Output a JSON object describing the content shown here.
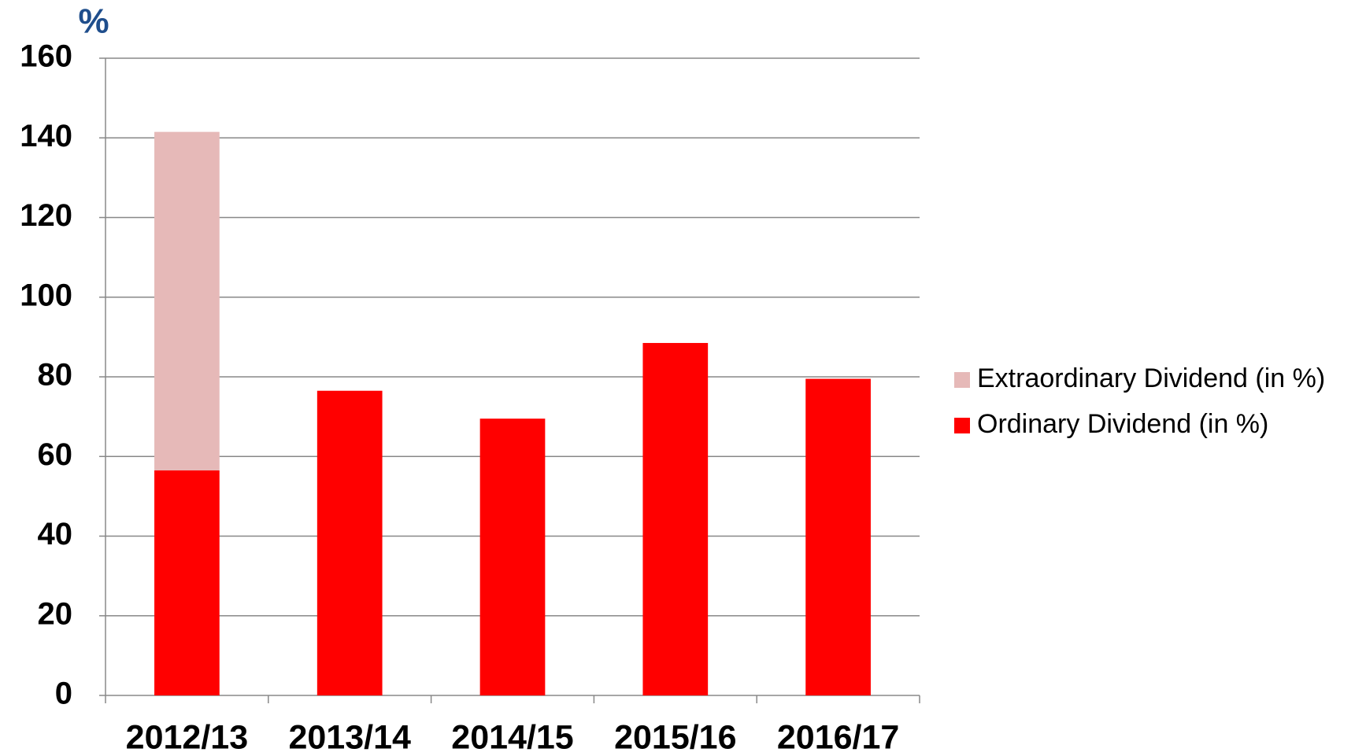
{
  "chart_data": {
    "type": "stacked_bar",
    "y_label": "%",
    "categories": [
      "2012/13",
      "2013/14",
      "2014/15",
      "2015/16",
      "2016/17"
    ],
    "series": [
      {
        "name": "Ordinary Dividend (in %)",
        "color": "#ff0000",
        "values": [
          56.5,
          76.5,
          69.5,
          88.5,
          79.5
        ]
      },
      {
        "name": "Extraordinary Dividend (in %)",
        "color": "#e6b9b8",
        "values": [
          85,
          0,
          0,
          0,
          0
        ]
      }
    ],
    "ylim": [
      0,
      160
    ],
    "yticks": [
      0,
      20,
      40,
      60,
      80,
      100,
      120,
      140,
      160
    ],
    "grid": true
  }
}
